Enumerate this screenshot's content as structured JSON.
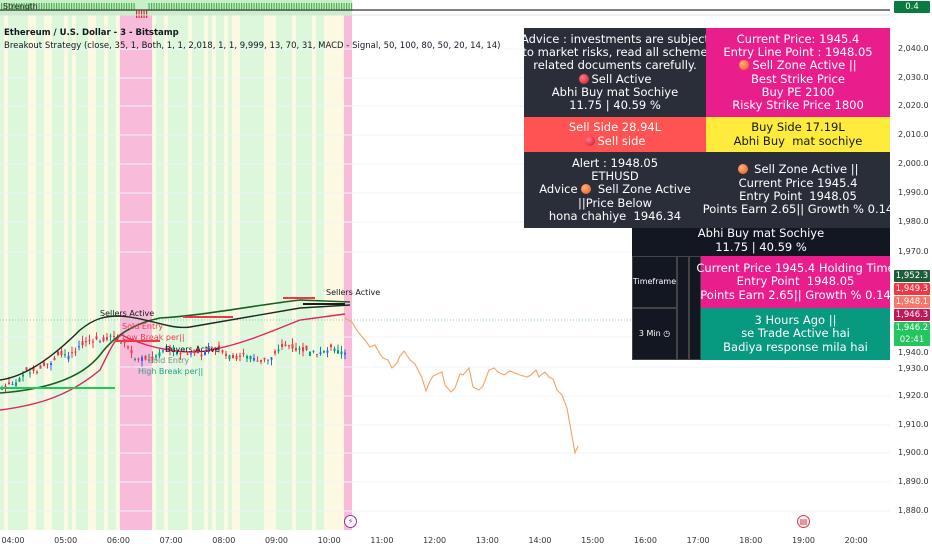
{
  "header": {
    "symbol": "Ethereum / U.S. Dollar - 3 - Bitstamp",
    "indicator": "Breakout Strategy (close, 35, 1, Both, 1, 1, 2,018, 1, 1, 9,999, 13, 70, 31, MACD - Signal, 50, 100, 80, 50, 20, 14, 14)"
  },
  "strength_pane": {
    "label": "Strength",
    "value": "0.4"
  },
  "price_axis": [
    "2,040.0",
    "2,030.0",
    "2,020.0",
    "2,010.0",
    "2,000.0",
    "1,990.0",
    "1,980.0",
    "1,970.0",
    "1,940.0",
    "1,930.0",
    "1,920.0",
    "1,910.0",
    "1,900.0",
    "1,890.0",
    "1,880.0"
  ],
  "price_tags": [
    {
      "value": "1,952.3",
      "color": "#1e5c3a"
    },
    {
      "value": "1,949.3",
      "color": "#f23645"
    },
    {
      "value": "1,948.1",
      "color": "#f7776a"
    },
    {
      "value": "1,946.3",
      "color": "#c2185b"
    },
    {
      "value": "1,946.2",
      "countdown": "02:41",
      "color": "#22c55e"
    }
  ],
  "time_axis": [
    "04:00",
    "05:00",
    "06:00",
    "07:00",
    "08:00",
    "09:00",
    "10:00",
    "11:00",
    "12:00",
    "13:00",
    "14:00",
    "15:00",
    "16:00",
    "17:00",
    "18:00",
    "19:00",
    "20:00"
  ],
  "annotations": {
    "sellers1": "Sellers Active",
    "sellers2": "Sellers Active",
    "buyers": "Buyers Active",
    "entry1": "Sold Entry",
    "low_break": "Low Break per||",
    "entry2": "Sold Entry",
    "high_break": "High Break per||"
  },
  "table1": {
    "advice": {
      "lines": [
        "Advice : investments are subject",
        "to market risks, read all scheme",
        "related documents carefully."
      ],
      "status": "Sell Active",
      "l5": "Abhi Buy mat Sochiye",
      "l6": "11.75 | 40.59 %"
    },
    "price": {
      "l1": "Current Price: 1945.4",
      "l2": "Entry Line Point : 1948.05",
      "l3": "Sell Zone Active ||",
      "l4": "Best Strike Price",
      "l5": "Buy PE 2100",
      "l6": "Risky Strike Price 1800"
    },
    "sell_side": {
      "l1": "Sell Side 28.94L",
      "l2": "Sell side"
    },
    "buy_side": {
      "l1": "Buy Side 17.19L",
      "l2": "Abhi Buy  mat sochiye"
    },
    "alert": {
      "l1": "Alert : 1948.05",
      "l2": "ETHUSD",
      "l3a": "Advice",
      "l3b": "Sell Zone Active",
      "l4": "||Price Below",
      "l5": "hona chahiye  1946.34"
    },
    "zone": {
      "l1": "Sell Zone Active ||",
      "l2": "Current Price 1945.4",
      "l3": "Entry Point  1948.05",
      "l4": "Points Earn 2.65|| Growth % 0.14"
    }
  },
  "table2": {
    "summary": {
      "l1": "Abhi Buy mat Sochiye",
      "l2": "11.75 | 40.59 %"
    },
    "timeframe_label": "Timeframe",
    "timeframe_value": "3 Min",
    "holding": {
      "l1": "Current Price 1945.4 Holding Time",
      "l2": "Entry Point  1948.05",
      "l3": "Points Earn 2.65|| Growth % 0.14"
    },
    "active": {
      "l1": "3 Hours Ago ||",
      "l2": "se Trade Active hai",
      "l3": "Badiya response mila hai"
    }
  },
  "colors": {
    "dark": "#2a2e39",
    "magenta": "#e91e8c",
    "red": "#ff5252",
    "yellow": "#ffeb3b",
    "teal": "#089981",
    "black": "#131722"
  }
}
